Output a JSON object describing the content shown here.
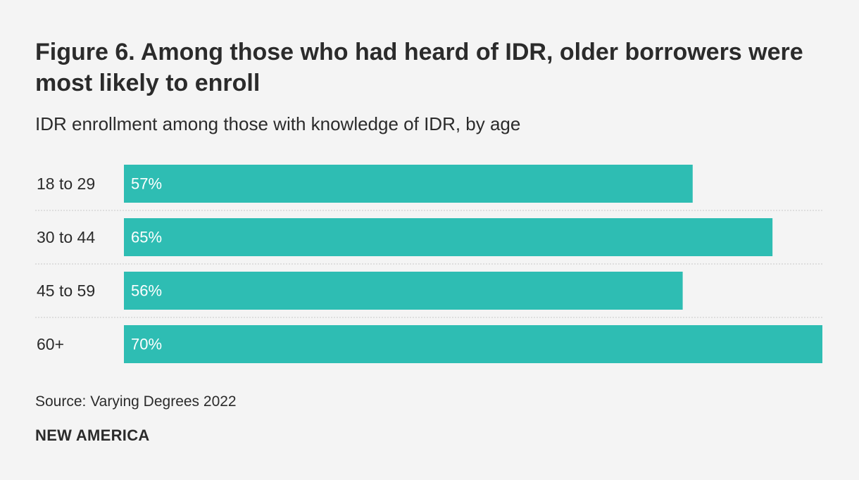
{
  "header": {
    "title": "Figure 6. Among those who had heard of IDR, older borrowers were most likely to enroll",
    "subtitle": "IDR enrollment among those with knowledge of IDR, by age"
  },
  "footer": {
    "source": "Source: Varying Degrees 2022",
    "brand": "NEW AMERICA"
  },
  "colors": {
    "bar": "#2ebdb3",
    "bar_label": "#ffffff",
    "category_label": "#2b2b2b",
    "divider": "#c8c8c8"
  },
  "chart_data": {
    "type": "bar",
    "orientation": "horizontal",
    "title": "Figure 6. Among those who had heard of IDR, older borrowers were most likely to enroll",
    "subtitle": "IDR enrollment among those with knowledge of IDR, by age",
    "categories": [
      "18 to 29",
      "30 to 44",
      "45 to 59",
      "60+"
    ],
    "values": [
      57,
      65,
      56,
      70
    ],
    "value_labels": [
      "57%",
      "65%",
      "56%",
      "70%"
    ],
    "unit": "%",
    "xlim": [
      0,
      70
    ],
    "grid": false,
    "legend": "none"
  }
}
